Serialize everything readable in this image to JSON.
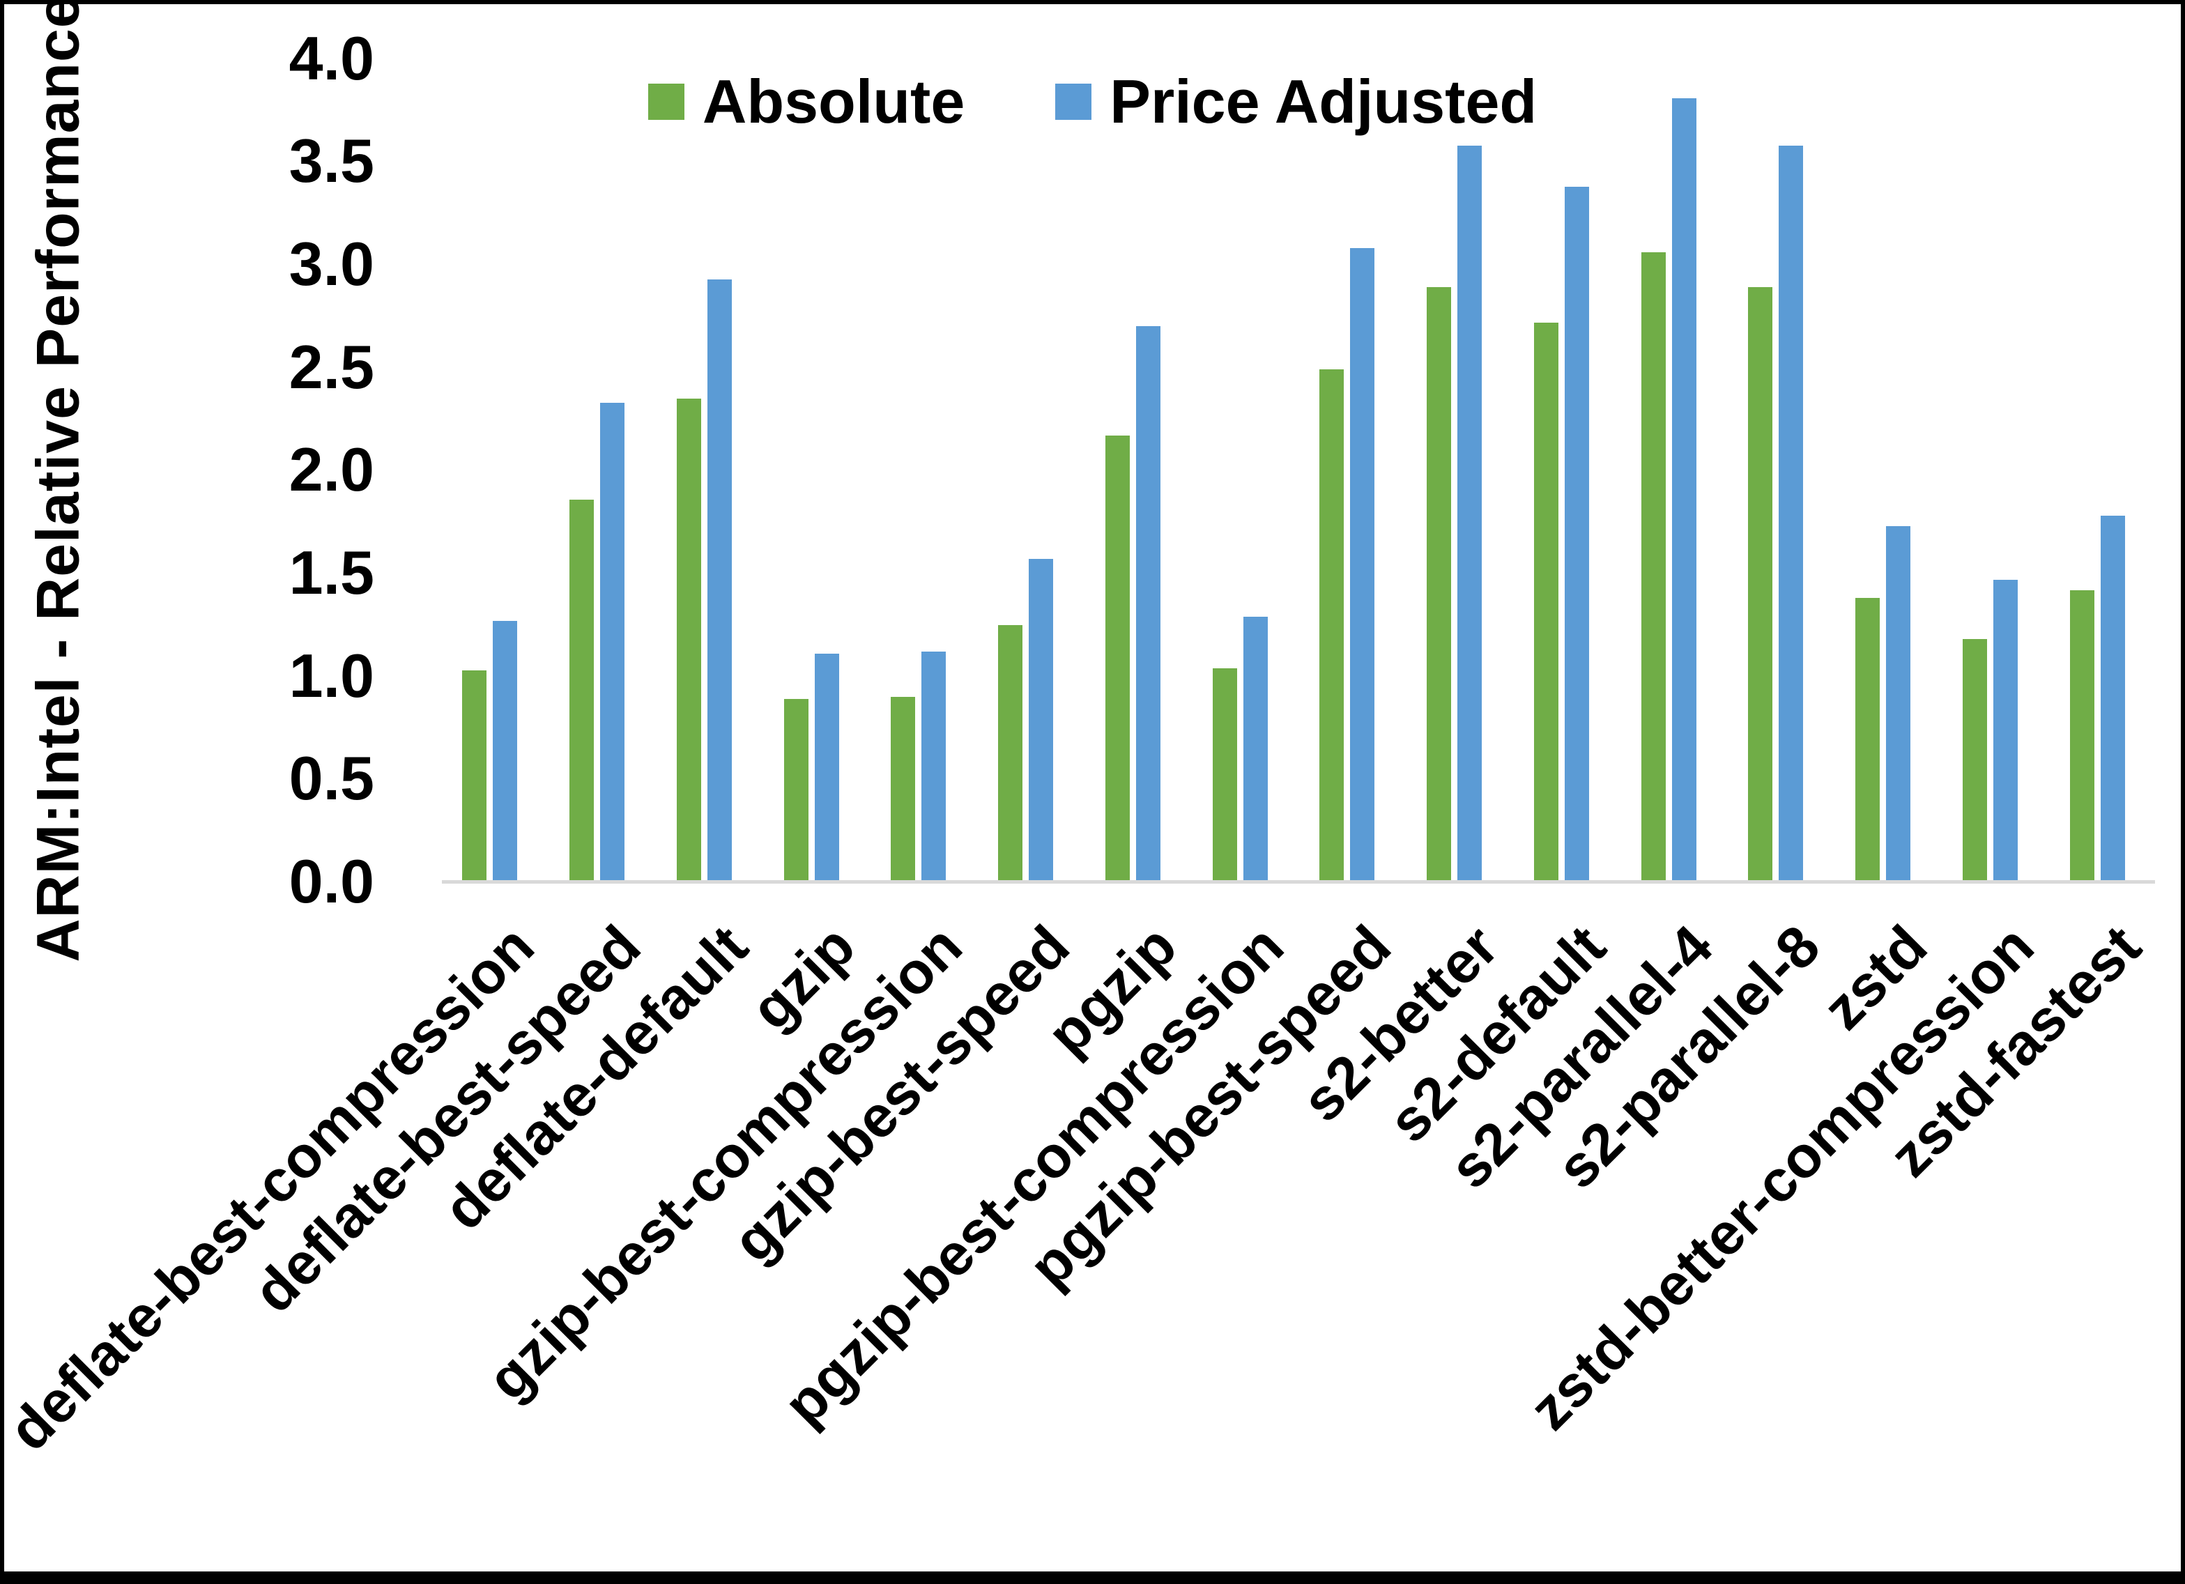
{
  "figure": {
    "background": "#ffffff",
    "border_color": "#000000",
    "axis_line_color": "#D9D9D9",
    "text_color": "#000000"
  },
  "chart_data": {
    "type": "bar",
    "title": "",
    "xlabel": "",
    "ylabel": "ARM:Intel - Relative Performance",
    "ylim": [
      0.0,
      4.0
    ],
    "ytick_step": 0.5,
    "yticks": [
      "4.0",
      "3.5",
      "3.0",
      "2.5",
      "2.0",
      "1.5",
      "1.0",
      "0.5",
      "0.0"
    ],
    "grid": false,
    "legend_position": "top-center",
    "categories": [
      "deflate-best-compression",
      "deflate-best-speed",
      "deflate-default",
      "gzip",
      "gzip-best-compression",
      "gzip-best-speed",
      "pgzip",
      "pgzip-best-compression",
      "pgzip-best-speed",
      "s2-better",
      "s2-default",
      "s2-parallel-4",
      "s2-parallel-8",
      "zstd",
      "zstd-better-compression",
      "zstd-fastest"
    ],
    "series": [
      {
        "name": "Absolute",
        "color": "#70AD47",
        "values": [
          1.02,
          1.85,
          2.34,
          0.88,
          0.89,
          1.24,
          2.16,
          1.03,
          2.48,
          2.88,
          2.71,
          3.05,
          2.88,
          1.37,
          1.17,
          1.41
        ]
      },
      {
        "name": "Price Adjusted",
        "color": "#5B9BD5",
        "values": [
          1.26,
          2.32,
          2.92,
          1.1,
          1.11,
          1.56,
          2.69,
          1.28,
          3.07,
          3.57,
          3.37,
          3.8,
          3.57,
          1.72,
          1.46,
          1.77
        ]
      }
    ]
  }
}
